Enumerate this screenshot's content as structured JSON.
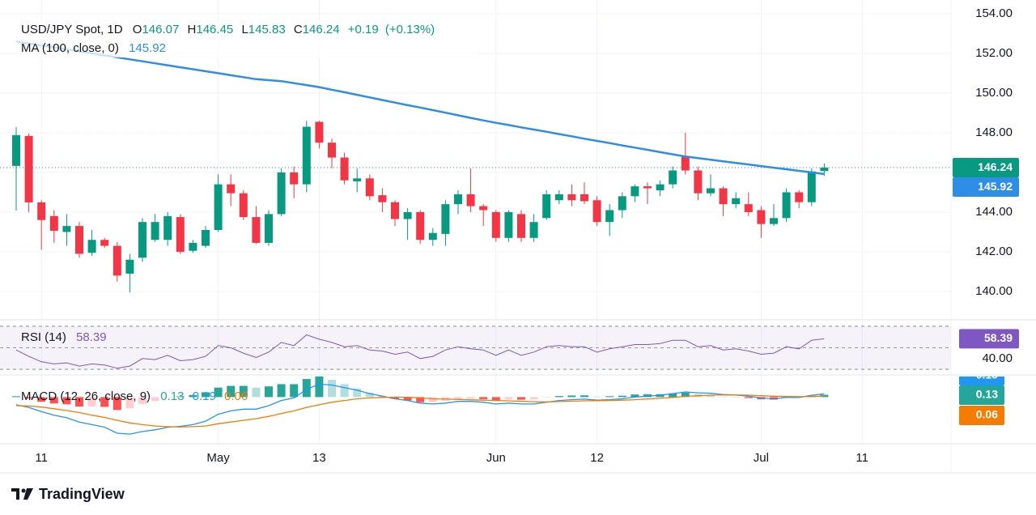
{
  "chart_data": [
    {
      "type": "candlestick",
      "title": "USD/JPY Spot, 1D",
      "legend_labels": {
        "open": "O",
        "high": "H",
        "low": "L",
        "close": "C"
      },
      "change": "+0.19",
      "change_pct": "(+0.13%)",
      "categories": [
        null,
        null,
        "11",
        null,
        null,
        null,
        null,
        null,
        null,
        null,
        null,
        null,
        null,
        null,
        null,
        null,
        "May",
        null,
        null,
        null,
        null,
        null,
        null,
        null,
        "13",
        null,
        null,
        null,
        null,
        null,
        null,
        null,
        null,
        null,
        null,
        null,
        null,
        null,
        "Jun",
        null,
        null,
        null,
        null,
        null,
        null,
        null,
        "12",
        null,
        null,
        null,
        null,
        null,
        null,
        null,
        null,
        null,
        null,
        null,
        null,
        "Jul",
        null,
        null,
        null,
        null,
        null,
        null,
        null,
        "11"
      ],
      "open": [
        146.33,
        147.84,
        144.49,
        143.8,
        143.0,
        143.3,
        141.95,
        142.6,
        142.3,
        140.9,
        141.7,
        142.6,
        142.6,
        143.75,
        142.05,
        142.3,
        143.1,
        145.4,
        144.95,
        143.75,
        142.45,
        143.9,
        146.0,
        145.4,
        148.55,
        147.5,
        146.75,
        145.55,
        145.7,
        144.85,
        144.5,
        143.65,
        144.0,
        142.6,
        142.9,
        144.4,
        144.9,
        144.3,
        144.0,
        142.7,
        143.9,
        142.7,
        143.7,
        144.6,
        144.9,
        144.9,
        144.6,
        143.5,
        144.1,
        144.8,
        145.3,
        145.1,
        145.4,
        146.8,
        146.1,
        144.95,
        145.2,
        144.4,
        144.4,
        144.1,
        143.4,
        143.7,
        145.0,
        144.5,
        146.07,
        null,
        null,
        null
      ],
      "high": [
        148.29,
        147.96,
        144.6,
        144.1,
        143.9,
        143.5,
        143.1,
        142.7,
        142.5,
        141.9,
        143.7,
        143.9,
        144.0,
        143.9,
        142.6,
        143.3,
        145.9,
        145.9,
        145.1,
        144.3,
        144.1,
        146.2,
        146.3,
        148.6,
        148.6,
        147.7,
        147.0,
        146.2,
        145.9,
        145.2,
        144.6,
        144.2,
        144.1,
        143.2,
        144.6,
        145.1,
        146.2,
        144.4,
        144.1,
        144.1,
        144.1,
        143.9,
        145.1,
        145.1,
        145.4,
        145.5,
        144.8,
        144.4,
        145.0,
        145.4,
        145.5,
        145.6,
        146.3,
        148.0,
        146.3,
        145.9,
        145.3,
        145.0,
        145.0,
        144.3,
        144.4,
        145.2,
        145.1,
        146.2,
        146.45,
        null,
        null,
        null
      ],
      "low": [
        144.08,
        144.0,
        142.1,
        142.45,
        142.3,
        141.7,
        141.8,
        142.2,
        140.5,
        139.95,
        141.5,
        142.5,
        142.3,
        141.9,
        141.95,
        142.2,
        143.0,
        144.3,
        143.6,
        142.4,
        142.3,
        143.8,
        144.7,
        145.0,
        147.2,
        146.2,
        145.4,
        145.0,
        144.6,
        144.0,
        143.3,
        142.6,
        142.4,
        142.3,
        142.3,
        143.9,
        144.0,
        143.3,
        142.5,
        142.5,
        142.5,
        142.5,
        143.6,
        144.4,
        144.3,
        144.4,
        143.3,
        142.8,
        143.7,
        144.5,
        144.4,
        144.8,
        145.2,
        145.9,
        144.6,
        144.8,
        143.8,
        144.2,
        143.8,
        142.7,
        143.3,
        143.5,
        144.2,
        144.3,
        145.83,
        null,
        null,
        null
      ],
      "close": [
        147.88,
        144.49,
        143.6,
        143.06,
        143.3,
        141.9,
        142.6,
        142.3,
        140.8,
        141.6,
        143.5,
        143.5,
        143.8,
        142.0,
        142.45,
        143.1,
        145.4,
        144.95,
        143.75,
        142.45,
        143.9,
        146.0,
        145.4,
        148.3,
        147.5,
        146.75,
        145.6,
        145.7,
        144.8,
        144.5,
        143.65,
        144.0,
        142.6,
        142.95,
        144.4,
        144.9,
        144.3,
        144.1,
        142.7,
        144.0,
        142.7,
        143.5,
        144.9,
        144.9,
        144.6,
        144.55,
        143.5,
        144.1,
        144.8,
        145.3,
        145.2,
        145.4,
        146.1,
        146.1,
        144.95,
        145.2,
        144.4,
        144.7,
        144.0,
        143.4,
        143.7,
        145.0,
        144.5,
        146.05,
        146.24,
        null,
        null,
        null
      ],
      "up_color": "#089981",
      "down_color": "#f23645",
      "series": [
        {
          "name": "MA (100, close, 0)",
          "color": "#2e8de6",
          "values": [
            152.6,
            152.5,
            152.4,
            152.3,
            152.2,
            152.1,
            152.0,
            151.9,
            151.8,
            151.7,
            151.6,
            151.5,
            151.4,
            151.3,
            151.2,
            151.1,
            151.0,
            150.9,
            150.8,
            150.7,
            150.65,
            150.6,
            150.5,
            150.4,
            150.3,
            150.17,
            150.04,
            149.91,
            149.78,
            149.65,
            149.52,
            149.39,
            149.27,
            149.14,
            149.01,
            148.88,
            148.75,
            148.62,
            148.5,
            148.39,
            148.27,
            148.16,
            148.05,
            147.93,
            147.82,
            147.7,
            147.59,
            147.48,
            147.36,
            147.25,
            147.14,
            147.02,
            146.91,
            146.8,
            146.72,
            146.64,
            146.56,
            146.48,
            146.4,
            146.32,
            146.24,
            146.16,
            146.08,
            146.0,
            145.92,
            null,
            null,
            null
          ]
        }
      ],
      "ylim": [
        138.57,
        154.69
      ],
      "yticks": [
        {
          "value": 154,
          "label": "154.00"
        },
        {
          "value": 152,
          "label": "152.00"
        },
        {
          "value": 150,
          "label": "150.00"
        },
        {
          "value": 148,
          "label": "148.00"
        },
        {
          "value": 146,
          "label": "146.00"
        },
        {
          "value": 144,
          "label": "144.00"
        },
        {
          "value": 142,
          "label": "142.00"
        },
        {
          "value": 140,
          "label": "140.00"
        }
      ],
      "grid": true
    },
    {
      "type": "line",
      "name": "RSI (14)",
      "color": "#7e57c2",
      "values": [
        48,
        42,
        37,
        35,
        36,
        33,
        35,
        34,
        31,
        33,
        40,
        39,
        43,
        38,
        39,
        42,
        52,
        50,
        45,
        41,
        46,
        55,
        52,
        62,
        58,
        55,
        51,
        52,
        48,
        47,
        44,
        46,
        40,
        42,
        48,
        51,
        49,
        48,
        43,
        48,
        43,
        46,
        51,
        52,
        51,
        51,
        46,
        49,
        51,
        53,
        53,
        54,
        57,
        57,
        51,
        52,
        48,
        49,
        47,
        44,
        45,
        51,
        49,
        57,
        58.39,
        null,
        null,
        null
      ],
      "ylim": [
        24.8,
        75.2
      ],
      "yticks": [
        {
          "value": 40,
          "label": "40.00"
        }
      ],
      "levels": [
        70,
        50,
        30
      ]
    },
    {
      "type": "macd",
      "name": "MACD (12, 26, close, 9)",
      "series": [
        {
          "name": "histogram",
          "colors": [
            "#26a69a",
            "#b2dfdb",
            "#ffcdd2",
            "#ff5252"
          ],
          "values": [
            0.05,
            -0.08,
            -0.27,
            -0.37,
            -0.42,
            -0.55,
            -0.55,
            -0.57,
            -0.75,
            -0.65,
            -0.4,
            -0.22,
            -0.03,
            0.04,
            0.12,
            0.28,
            0.55,
            0.65,
            0.65,
            0.55,
            0.62,
            0.75,
            0.75,
            1.05,
            1.2,
            1.0,
            0.75,
            0.5,
            0.25,
            0.07,
            -0.1,
            -0.19,
            -0.3,
            -0.3,
            -0.23,
            -0.11,
            -0.09,
            -0.12,
            -0.2,
            -0.13,
            -0.15,
            -0.13,
            -0.02,
            0.06,
            0.09,
            0.1,
            0.03,
            0.05,
            0.08,
            0.15,
            0.16,
            0.17,
            0.22,
            0.26,
            0.17,
            0.11,
            0.03,
            0.0,
            -0.06,
            -0.13,
            -0.15,
            -0.05,
            -0.04,
            0.07,
            0.13,
            null,
            null,
            null
          ]
        },
        {
          "name": "macd",
          "color": "#2196f3",
          "values": [
            -0.45,
            -0.6,
            -0.85,
            -1.05,
            -1.2,
            -1.45,
            -1.6,
            -1.75,
            -2.1,
            -2.15,
            -2.0,
            -1.9,
            -1.75,
            -1.7,
            -1.6,
            -1.4,
            -1.0,
            -0.8,
            -0.7,
            -0.7,
            -0.5,
            -0.2,
            -0.05,
            0.45,
            0.75,
            0.7,
            0.55,
            0.4,
            0.2,
            0.05,
            -0.1,
            -0.2,
            -0.35,
            -0.4,
            -0.35,
            -0.25,
            -0.25,
            -0.3,
            -0.4,
            -0.35,
            -0.4,
            -0.4,
            -0.3,
            -0.2,
            -0.15,
            -0.12,
            -0.18,
            -0.15,
            -0.1,
            0.0,
            0.05,
            0.1,
            0.2,
            0.3,
            0.25,
            0.22,
            0.15,
            0.12,
            0.05,
            -0.05,
            -0.1,
            -0.02,
            -0.02,
            0.1,
            0.19,
            null,
            null,
            null
          ]
        },
        {
          "name": "signal",
          "color": "#f57c00",
          "values": [
            -0.5,
            -0.52,
            -0.58,
            -0.68,
            -0.78,
            -0.9,
            -1.05,
            -1.18,
            -1.35,
            -1.5,
            -1.6,
            -1.68,
            -1.72,
            -1.74,
            -1.72,
            -1.68,
            -1.55,
            -1.45,
            -1.35,
            -1.25,
            -1.12,
            -0.95,
            -0.8,
            -0.6,
            -0.45,
            -0.3,
            -0.2,
            -0.1,
            -0.05,
            -0.02,
            0.0,
            -0.01,
            -0.05,
            -0.1,
            -0.12,
            -0.14,
            -0.16,
            -0.18,
            -0.2,
            -0.22,
            -0.25,
            -0.27,
            -0.28,
            -0.26,
            -0.24,
            -0.22,
            -0.21,
            -0.2,
            -0.18,
            -0.15,
            -0.11,
            -0.07,
            -0.02,
            0.04,
            0.08,
            0.11,
            0.12,
            0.12,
            0.11,
            0.08,
            0.05,
            0.03,
            0.02,
            0.03,
            0.06,
            null,
            null,
            null
          ]
        }
      ],
      "ylim": [
        -2.71,
        1.24
      ]
    }
  ],
  "branding": "TradingView"
}
